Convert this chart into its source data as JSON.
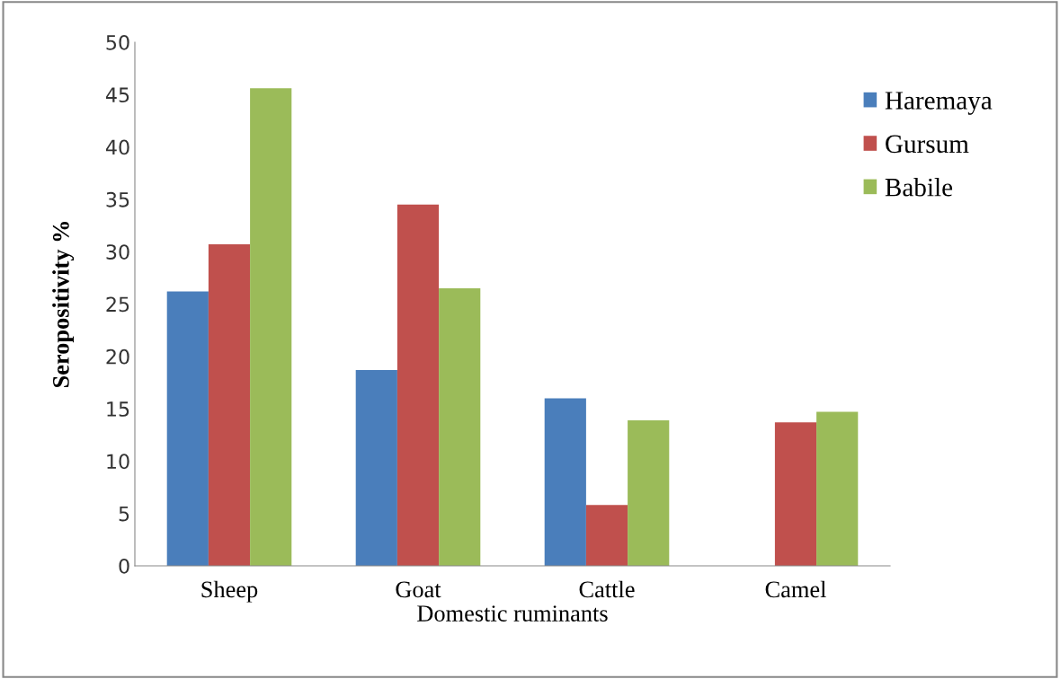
{
  "chart_data": {
    "type": "bar",
    "xlabel": "Domestic ruminants",
    "ylabel": "Seropositivity %",
    "categories": [
      "Sheep",
      "Goat",
      "Cattle",
      "Camel"
    ],
    "series": [
      {
        "name": "Haremaya",
        "color": "#4a7ebb",
        "values": [
          26.2,
          18.7,
          16.0,
          0
        ]
      },
      {
        "name": "Gursum",
        "color": "#c0504d",
        "values": [
          30.7,
          34.5,
          5.8,
          13.7
        ]
      },
      {
        "name": "Babile",
        "color": "#9bbb59",
        "values": [
          45.6,
          26.5,
          13.9,
          14.7
        ]
      }
    ],
    "ylim": [
      0,
      50
    ],
    "yticks": [
      0,
      5,
      10,
      15,
      20,
      25,
      30,
      35,
      40,
      45,
      50
    ],
    "grid": false,
    "legend": "top right"
  }
}
